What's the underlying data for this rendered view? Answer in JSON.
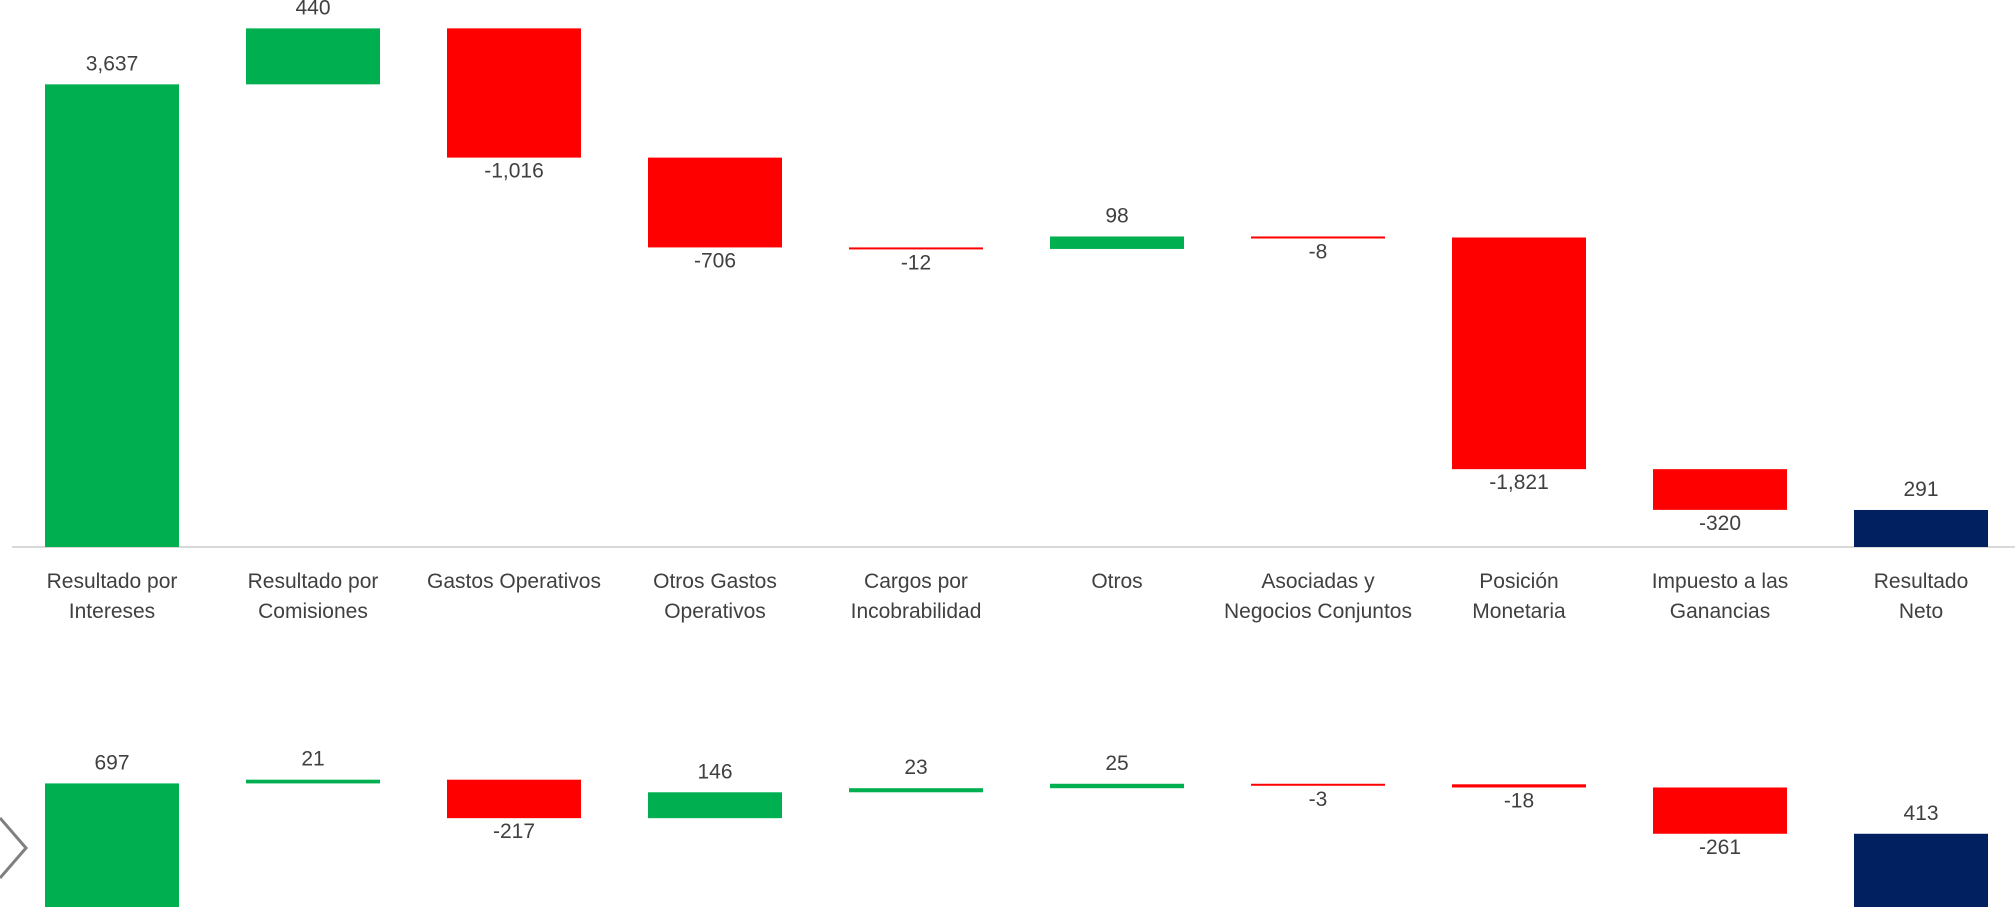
{
  "chart_data": [
    {
      "type": "waterfall",
      "categories": [
        [
          "Resultado por",
          "Intereses"
        ],
        [
          "Resultado por",
          "Comisiones"
        ],
        [
          "Gastos Operativos"
        ],
        [
          "Otros Gastos",
          "Operativos"
        ],
        [
          "Cargos por",
          "Incobrabilidad"
        ],
        [
          "Otros"
        ],
        [
          "Asociadas y",
          "Negocios Conjuntos"
        ],
        [
          "Posición",
          "Monetaria"
        ],
        [
          "Impuesto a las",
          "Ganancias"
        ],
        [
          "Resultado",
          "Neto"
        ]
      ],
      "values": [
        3637,
        440,
        -1016,
        -706,
        -12,
        98,
        -8,
        -1821,
        -320,
        291
      ],
      "value_labels": [
        "3,637",
        "440",
        "-1,016",
        "-706",
        "-12",
        "98",
        "-8",
        "-1,821",
        "-320",
        "291"
      ],
      "colors": {
        "increase": "#00b050",
        "decrease": "#ff0000",
        "total": "#002060"
      },
      "ylim": [
        0,
        4300
      ]
    },
    {
      "type": "waterfall",
      "values": [
        697,
        21,
        -217,
        146,
        23,
        25,
        -3,
        -18,
        -261,
        413
      ],
      "colors": {
        "increase": "#00b050",
        "decrease": "#ff0000",
        "total": "#002060"
      },
      "ylim": [
        0,
        970
      ]
    }
  ]
}
